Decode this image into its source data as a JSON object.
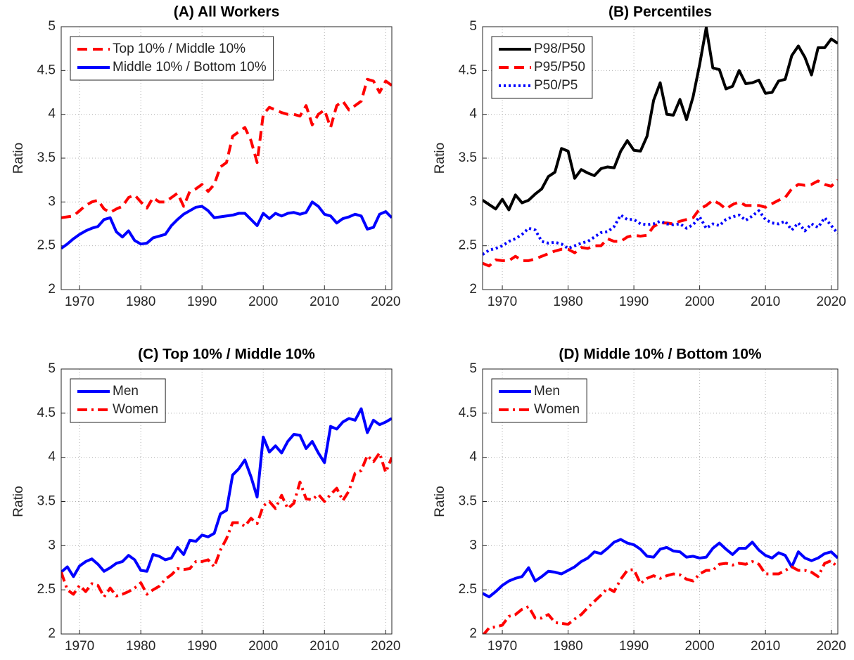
{
  "chart_data": [
    {
      "type": "line",
      "title": "(A) All Workers",
      "ylabel": "Ratio",
      "x": [
        1967,
        1968,
        1969,
        1970,
        1971,
        1972,
        1973,
        1974,
        1975,
        1976,
        1977,
        1978,
        1979,
        1980,
        1981,
        1982,
        1983,
        1984,
        1985,
        1986,
        1987,
        1988,
        1989,
        1990,
        1991,
        1992,
        1993,
        1994,
        1995,
        1996,
        1997,
        1998,
        1999,
        2000,
        2001,
        2002,
        2003,
        2004,
        2005,
        2006,
        2007,
        2008,
        2009,
        2010,
        2011,
        2012,
        2013,
        2014,
        2015,
        2016,
        2017,
        2018,
        2019,
        2020,
        2021
      ],
      "xlim": [
        1967,
        2021
      ],
      "xticks": [
        1970,
        1980,
        1990,
        2000,
        2010,
        2020
      ],
      "ylim": [
        2,
        5
      ],
      "yticks": [
        2,
        2.5,
        3,
        3.5,
        4,
        4.5,
        5
      ],
      "grid": true,
      "legend": "upper left",
      "series": [
        {
          "name": "Top 10% / Middle 10%",
          "color": "#ff0000",
          "linestyle": "dashed",
          "values": [
            2.82,
            2.83,
            2.84,
            2.9,
            2.96,
            3.0,
            3.02,
            2.92,
            2.88,
            2.92,
            2.95,
            3.05,
            3.08,
            3.0,
            2.93,
            3.05,
            3.0,
            3.0,
            3.05,
            3.1,
            2.95,
            3.12,
            3.15,
            3.2,
            3.12,
            3.2,
            3.4,
            3.45,
            3.75,
            3.8,
            3.85,
            3.7,
            3.45,
            4.0,
            4.08,
            4.05,
            4.02,
            4.0,
            4.0,
            3.98,
            4.1,
            3.88,
            4.0,
            4.05,
            3.85,
            4.1,
            4.15,
            4.05,
            4.1,
            4.15,
            4.4,
            4.38,
            4.25,
            4.38,
            4.33
          ]
        },
        {
          "name": "Middle 10% / Bottom 10%",
          "color": "#0000ff",
          "linestyle": "solid",
          "values": [
            2.47,
            2.52,
            2.58,
            2.63,
            2.67,
            2.7,
            2.72,
            2.8,
            2.82,
            2.66,
            2.6,
            2.67,
            2.56,
            2.52,
            2.53,
            2.59,
            2.61,
            2.63,
            2.73,
            2.8,
            2.86,
            2.9,
            2.94,
            2.95,
            2.9,
            2.82,
            2.83,
            2.84,
            2.85,
            2.87,
            2.87,
            2.8,
            2.73,
            2.87,
            2.81,
            2.87,
            2.84,
            2.87,
            2.88,
            2.86,
            2.88,
            3.0,
            2.95,
            2.86,
            2.84,
            2.76,
            2.81,
            2.83,
            2.86,
            2.84,
            2.69,
            2.71,
            2.86,
            2.89,
            2.82
          ]
        }
      ]
    },
    {
      "type": "line",
      "title": "(B) Percentiles",
      "ylabel": "Ratio",
      "x": [
        1967,
        1968,
        1969,
        1970,
        1971,
        1972,
        1973,
        1974,
        1975,
        1976,
        1977,
        1978,
        1979,
        1980,
        1981,
        1982,
        1983,
        1984,
        1985,
        1986,
        1987,
        1988,
        1989,
        1990,
        1991,
        1992,
        1993,
        1994,
        1995,
        1996,
        1997,
        1998,
        1999,
        2000,
        2001,
        2002,
        2003,
        2004,
        2005,
        2006,
        2007,
        2008,
        2009,
        2010,
        2011,
        2012,
        2013,
        2014,
        2015,
        2016,
        2017,
        2018,
        2019,
        2020,
        2021
      ],
      "xlim": [
        1967,
        2021
      ],
      "xticks": [
        1970,
        1980,
        1990,
        2000,
        2010,
        2020
      ],
      "ylim": [
        2,
        5
      ],
      "yticks": [
        2,
        2.5,
        3,
        3.5,
        4,
        4.5,
        5
      ],
      "grid": true,
      "legend": "upper left",
      "series": [
        {
          "name": "P98/P50",
          "color": "#000000",
          "linestyle": "solid",
          "values": [
            3.02,
            2.97,
            2.92,
            3.03,
            2.91,
            3.08,
            2.99,
            3.02,
            3.09,
            3.15,
            3.29,
            3.34,
            3.61,
            3.58,
            3.27,
            3.37,
            3.33,
            3.3,
            3.38,
            3.4,
            3.39,
            3.58,
            3.7,
            3.59,
            3.58,
            3.75,
            4.16,
            4.36,
            4.0,
            3.99,
            4.17,
            3.94,
            4.2,
            4.57,
            4.99,
            4.53,
            4.51,
            4.29,
            4.32,
            4.5,
            4.35,
            4.36,
            4.39,
            4.24,
            4.25,
            4.38,
            4.4,
            4.67,
            4.78,
            4.65,
            4.45,
            4.76,
            4.76,
            4.86,
            4.81
          ]
        },
        {
          "name": "P95/P50",
          "color": "#ff0000",
          "linestyle": "dashed",
          "values": [
            2.3,
            2.27,
            2.34,
            2.33,
            2.33,
            2.38,
            2.33,
            2.33,
            2.35,
            2.38,
            2.41,
            2.44,
            2.46,
            2.46,
            2.42,
            2.48,
            2.47,
            2.5,
            2.5,
            2.58,
            2.55,
            2.55,
            2.6,
            2.62,
            2.61,
            2.62,
            2.72,
            2.76,
            2.76,
            2.75,
            2.78,
            2.8,
            2.82,
            2.92,
            2.96,
            3.02,
            2.98,
            2.92,
            2.97,
            3.0,
            2.96,
            2.96,
            2.96,
            2.94,
            2.98,
            3.02,
            3.05,
            3.15,
            3.2,
            3.19,
            3.2,
            3.24,
            3.2,
            3.18,
            3.25
          ]
        },
        {
          "name": "P50/P5",
          "color": "#0000ff",
          "linestyle": "dotted",
          "values": [
            2.4,
            2.45,
            2.47,
            2.5,
            2.55,
            2.58,
            2.63,
            2.7,
            2.68,
            2.55,
            2.53,
            2.54,
            2.52,
            2.47,
            2.5,
            2.53,
            2.55,
            2.6,
            2.65,
            2.66,
            2.72,
            2.85,
            2.8,
            2.8,
            2.75,
            2.74,
            2.75,
            2.78,
            2.75,
            2.74,
            2.75,
            2.7,
            2.74,
            2.83,
            2.7,
            2.75,
            2.73,
            2.8,
            2.83,
            2.85,
            2.79,
            2.84,
            2.9,
            2.8,
            2.76,
            2.75,
            2.78,
            2.68,
            2.76,
            2.67,
            2.75,
            2.71,
            2.82,
            2.73,
            2.64
          ]
        }
      ]
    },
    {
      "type": "line",
      "title": "(C) Top 10% / Middle 10%",
      "ylabel": "Ratio",
      "x": [
        1967,
        1968,
        1969,
        1970,
        1971,
        1972,
        1973,
        1974,
        1975,
        1976,
        1977,
        1978,
        1979,
        1980,
        1981,
        1982,
        1983,
        1984,
        1985,
        1986,
        1987,
        1988,
        1989,
        1990,
        1991,
        1992,
        1993,
        1994,
        1995,
        1996,
        1997,
        1998,
        1999,
        2000,
        2001,
        2002,
        2003,
        2004,
        2005,
        2006,
        2007,
        2008,
        2009,
        2010,
        2011,
        2012,
        2013,
        2014,
        2015,
        2016,
        2017,
        2018,
        2019,
        2020,
        2021
      ],
      "xlim": [
        1967,
        2021
      ],
      "xticks": [
        1970,
        1980,
        1990,
        2000,
        2010,
        2020
      ],
      "ylim": [
        2,
        5
      ],
      "yticks": [
        2,
        2.5,
        3,
        3.5,
        4,
        4.5,
        5
      ],
      "grid": true,
      "legend": "upper left",
      "series": [
        {
          "name": "Men",
          "color": "#0000ff",
          "linestyle": "solid",
          "values": [
            2.7,
            2.76,
            2.65,
            2.77,
            2.82,
            2.85,
            2.79,
            2.71,
            2.75,
            2.8,
            2.82,
            2.89,
            2.84,
            2.72,
            2.71,
            2.9,
            2.88,
            2.84,
            2.86,
            2.98,
            2.9,
            3.06,
            3.05,
            3.12,
            3.1,
            3.14,
            3.36,
            3.4,
            3.8,
            3.87,
            3.97,
            3.78,
            3.55,
            4.23,
            4.06,
            4.13,
            4.05,
            4.18,
            4.26,
            4.25,
            4.1,
            4.18,
            4.05,
            3.94,
            4.35,
            4.32,
            4.4,
            4.44,
            4.42,
            4.55,
            4.28,
            4.42,
            4.37,
            4.4,
            4.44
          ]
        },
        {
          "name": "Women",
          "color": "#ff0000",
          "linestyle": "dashdot",
          "values": [
            2.7,
            2.5,
            2.45,
            2.55,
            2.48,
            2.57,
            2.55,
            2.42,
            2.52,
            2.43,
            2.45,
            2.48,
            2.52,
            2.58,
            2.45,
            2.5,
            2.54,
            2.62,
            2.67,
            2.74,
            2.73,
            2.74,
            2.82,
            2.82,
            2.84,
            2.76,
            2.95,
            3.08,
            3.26,
            3.26,
            3.22,
            3.31,
            3.25,
            3.45,
            3.5,
            3.42,
            3.57,
            3.42,
            3.48,
            3.72,
            3.53,
            3.52,
            3.58,
            3.5,
            3.58,
            3.65,
            3.51,
            3.62,
            3.82,
            3.85,
            4.02,
            3.95,
            4.05,
            3.83,
            4.0
          ]
        }
      ]
    },
    {
      "type": "line",
      "title": "(D) Middle 10% / Bottom 10%",
      "ylabel": "Ratio",
      "x": [
        1967,
        1968,
        1969,
        1970,
        1971,
        1972,
        1973,
        1974,
        1975,
        1976,
        1977,
        1978,
        1979,
        1980,
        1981,
        1982,
        1983,
        1984,
        1985,
        1986,
        1987,
        1988,
        1989,
        1990,
        1991,
        1992,
        1993,
        1994,
        1995,
        1996,
        1997,
        1998,
        1999,
        2000,
        2001,
        2002,
        2003,
        2004,
        2005,
        2006,
        2007,
        2008,
        2009,
        2010,
        2011,
        2012,
        2013,
        2014,
        2015,
        2016,
        2017,
        2018,
        2019,
        2020,
        2021
      ],
      "xlim": [
        1967,
        2021
      ],
      "xticks": [
        1970,
        1980,
        1990,
        2000,
        2010,
        2020
      ],
      "ylim": [
        2,
        5
      ],
      "yticks": [
        2,
        2.5,
        3,
        3.5,
        4,
        4.5,
        5
      ],
      "grid": true,
      "legend": "upper left",
      "series": [
        {
          "name": "Men",
          "color": "#0000ff",
          "linestyle": "solid",
          "values": [
            2.46,
            2.42,
            2.48,
            2.55,
            2.6,
            2.63,
            2.65,
            2.75,
            2.6,
            2.65,
            2.71,
            2.7,
            2.68,
            2.72,
            2.76,
            2.82,
            2.86,
            2.93,
            2.91,
            2.97,
            3.04,
            3.07,
            3.03,
            3.01,
            2.96,
            2.88,
            2.87,
            2.96,
            2.98,
            2.94,
            2.93,
            2.87,
            2.88,
            2.86,
            2.87,
            2.97,
            3.03,
            2.96,
            2.9,
            2.97,
            2.97,
            3.04,
            2.95,
            2.89,
            2.86,
            2.92,
            2.89,
            2.76,
            2.93,
            2.86,
            2.83,
            2.86,
            2.91,
            2.93,
            2.86
          ]
        },
        {
          "name": "Women",
          "color": "#ff0000",
          "linestyle": "dashdot",
          "values": [
            1.98,
            2.07,
            2.08,
            2.1,
            2.2,
            2.22,
            2.28,
            2.31,
            2.18,
            2.18,
            2.22,
            2.13,
            2.12,
            2.11,
            2.17,
            2.22,
            2.3,
            2.37,
            2.44,
            2.52,
            2.48,
            2.62,
            2.72,
            2.73,
            2.57,
            2.63,
            2.66,
            2.63,
            2.66,
            2.68,
            2.67,
            2.62,
            2.6,
            2.68,
            2.72,
            2.72,
            2.79,
            2.8,
            2.78,
            2.8,
            2.79,
            2.82,
            2.79,
            2.68,
            2.68,
            2.68,
            2.72,
            2.76,
            2.72,
            2.72,
            2.7,
            2.65,
            2.8,
            2.83,
            2.75
          ]
        }
      ]
    }
  ]
}
